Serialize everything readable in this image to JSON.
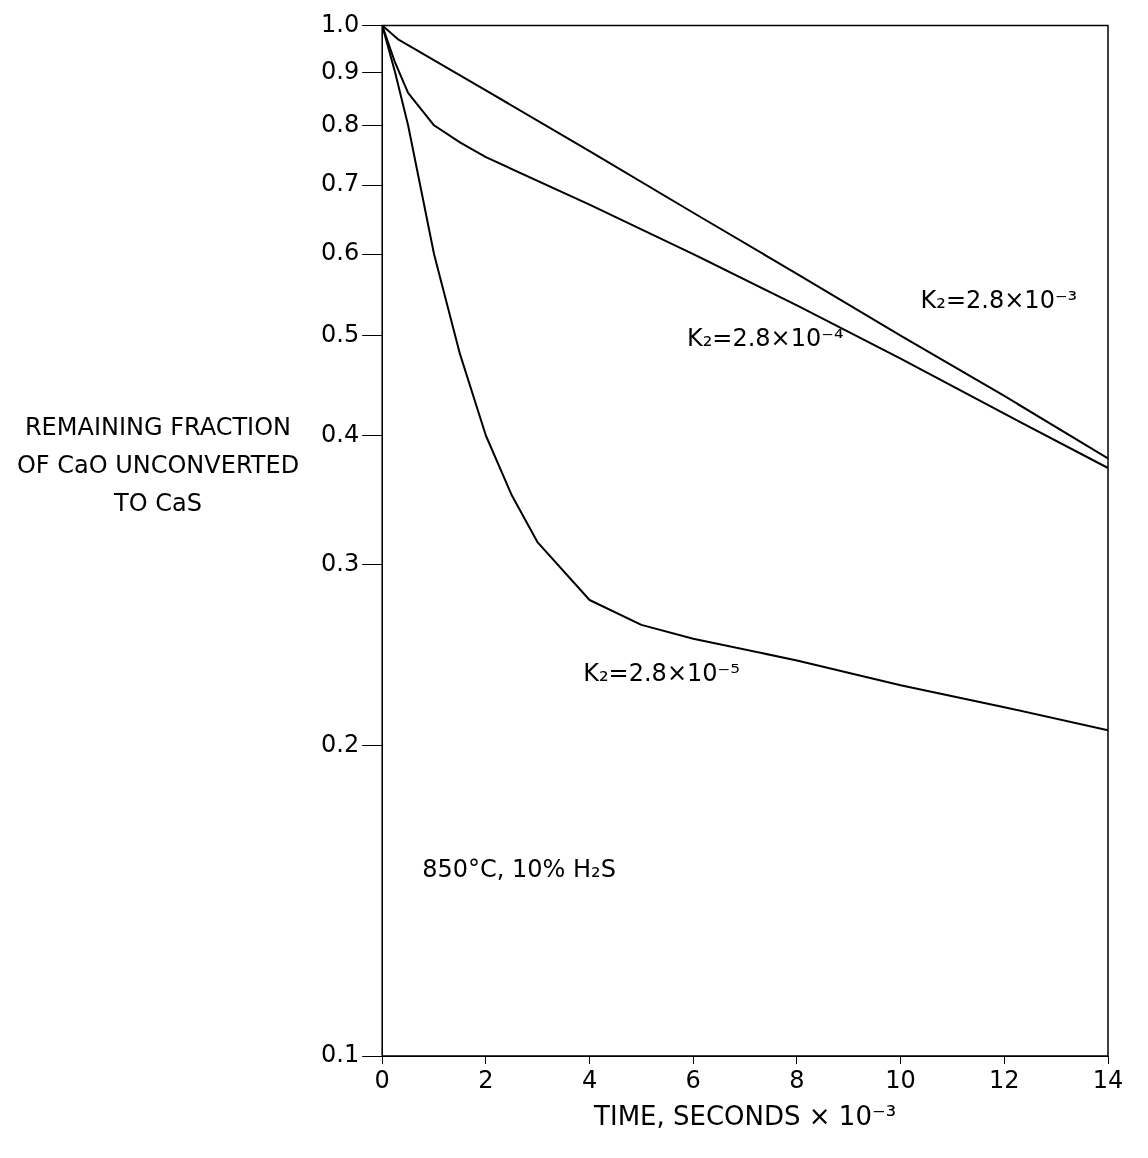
{
  "chart_data": {
    "type": "line",
    "xlabel": "TIME, SECONDS × 10⁻³",
    "ylabel": "REMAINING FRACTION OF CaO UNCONVERTED TO CaS",
    "xlim": [
      0,
      14
    ],
    "xticks": [
      0,
      2,
      4,
      6,
      8,
      10,
      12,
      14
    ],
    "ylim": [
      0.1,
      1.0
    ],
    "yticks": [
      0.1,
      0.2,
      0.3,
      0.4,
      0.5,
      0.6,
      0.7,
      0.8,
      0.9,
      {
        "value": 1.0,
        "label": "1.0"
      }
    ],
    "log": "y",
    "grid": false,
    "legend": false,
    "marker": "none",
    "line_style": "solid",
    "series": [
      {
        "name": "K₂=2.8×10⁻³",
        "color": "#000000",
        "x": [
          0,
          0.3,
          2,
          4,
          6,
          8,
          10,
          12,
          14
        ],
        "values": [
          1.0,
          0.97,
          0.865,
          0.755,
          0.658,
          0.574,
          0.5,
          0.437,
          0.38
        ]
      },
      {
        "name": "K₂=2.8×10⁻⁴",
        "color": "#000000",
        "x": [
          0,
          0.25,
          0.5,
          1,
          1.5,
          2,
          4,
          6,
          8,
          10,
          12,
          14
        ],
        "values": [
          1.0,
          0.92,
          0.86,
          0.8,
          0.77,
          0.745,
          0.67,
          0.6,
          0.535,
          0.475,
          0.42,
          0.372
        ]
      },
      {
        "name": "K₂=2.8×10⁻⁵",
        "color": "#000000",
        "x": [
          0,
          0.25,
          0.5,
          1,
          1.5,
          2,
          2.5,
          3,
          4,
          5,
          6,
          8,
          10,
          12,
          14
        ],
        "values": [
          1.0,
          0.9,
          0.8,
          0.6,
          0.48,
          0.4,
          0.35,
          0.315,
          0.277,
          0.262,
          0.254,
          0.242,
          0.229,
          0.218,
          0.207
        ]
      }
    ],
    "annotations": [
      "850°C, 10% H₂S"
    ]
  }
}
